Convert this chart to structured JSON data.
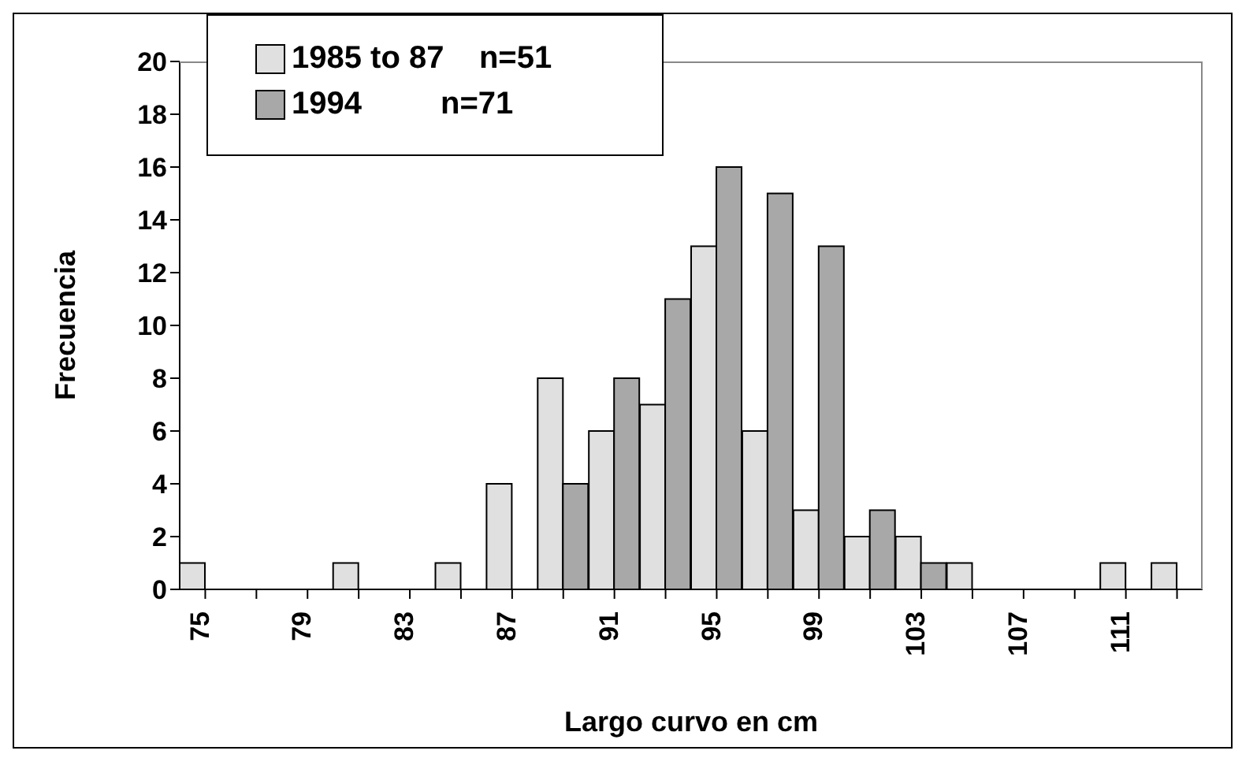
{
  "chart_data": {
    "type": "bar",
    "xlabel": "Largo curvo en cm",
    "ylabel": "Frecuencia",
    "categories": [
      "75",
      null,
      "79",
      null,
      "83",
      null,
      "87",
      null,
      "91",
      null,
      "95",
      null,
      "99",
      null,
      "103",
      null,
      "107",
      null,
      "111",
      null
    ],
    "series": [
      {
        "name": "1985 to 87    n=51",
        "color": "#e0e0e0",
        "values": [
          1,
          0,
          0,
          1,
          0,
          1,
          4,
          8,
          6,
          7,
          13,
          6,
          3,
          2,
          2,
          1,
          0,
          0,
          1,
          1
        ]
      },
      {
        "name": "1994         n=71",
        "color": "#a8a8a8",
        "values": [
          0,
          0,
          0,
          0,
          0,
          0,
          0,
          4,
          8,
          11,
          16,
          15,
          13,
          3,
          1,
          0,
          0,
          0,
          0,
          0
        ]
      }
    ],
    "ylim": [
      0,
      20
    ],
    "yticks": [
      0,
      2,
      4,
      6,
      8,
      10,
      12,
      14,
      16,
      18,
      20
    ],
    "grid": false,
    "legend": "top left"
  }
}
